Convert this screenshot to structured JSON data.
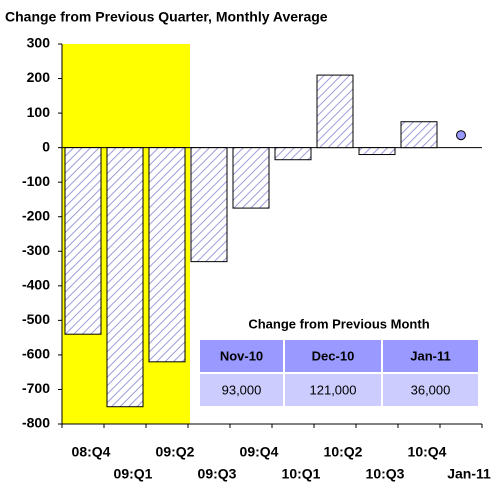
{
  "chart_data": {
    "type": "bar",
    "title": "Change from Previous Quarter, Monthly Average",
    "categories": [
      "08:Q4",
      "09:Q1",
      "09:Q2",
      "09:Q3",
      "09:Q4",
      "10:Q1",
      "10:Q2",
      "10:Q3",
      "10:Q4",
      "Jan-11"
    ],
    "series": [
      {
        "type": "bar",
        "color": "#9c9cdc",
        "values": [
          -540,
          -750,
          -620,
          -330,
          -175,
          -35,
          210,
          -20,
          75,
          null
        ]
      },
      {
        "type": "dot",
        "color": "#9999ff",
        "values": [
          null,
          null,
          null,
          null,
          null,
          null,
          null,
          null,
          null,
          36
        ]
      }
    ],
    "ylim": [
      -800,
      300
    ],
    "yticks": [
      -800,
      -700,
      -600,
      -500,
      -400,
      -300,
      -200,
      -100,
      0,
      100,
      200,
      300
    ],
    "highlight_range": [
      0,
      2
    ],
    "highlight_color": "#ffff00",
    "table": {
      "title": "Change from Previous Month",
      "header": [
        "Nov-10",
        "Dec-10",
        "Jan-11"
      ],
      "row": [
        "93,000",
        "121,000",
        "36,000"
      ],
      "header_color": "#9999ff",
      "row_color": "#ccccff"
    }
  }
}
